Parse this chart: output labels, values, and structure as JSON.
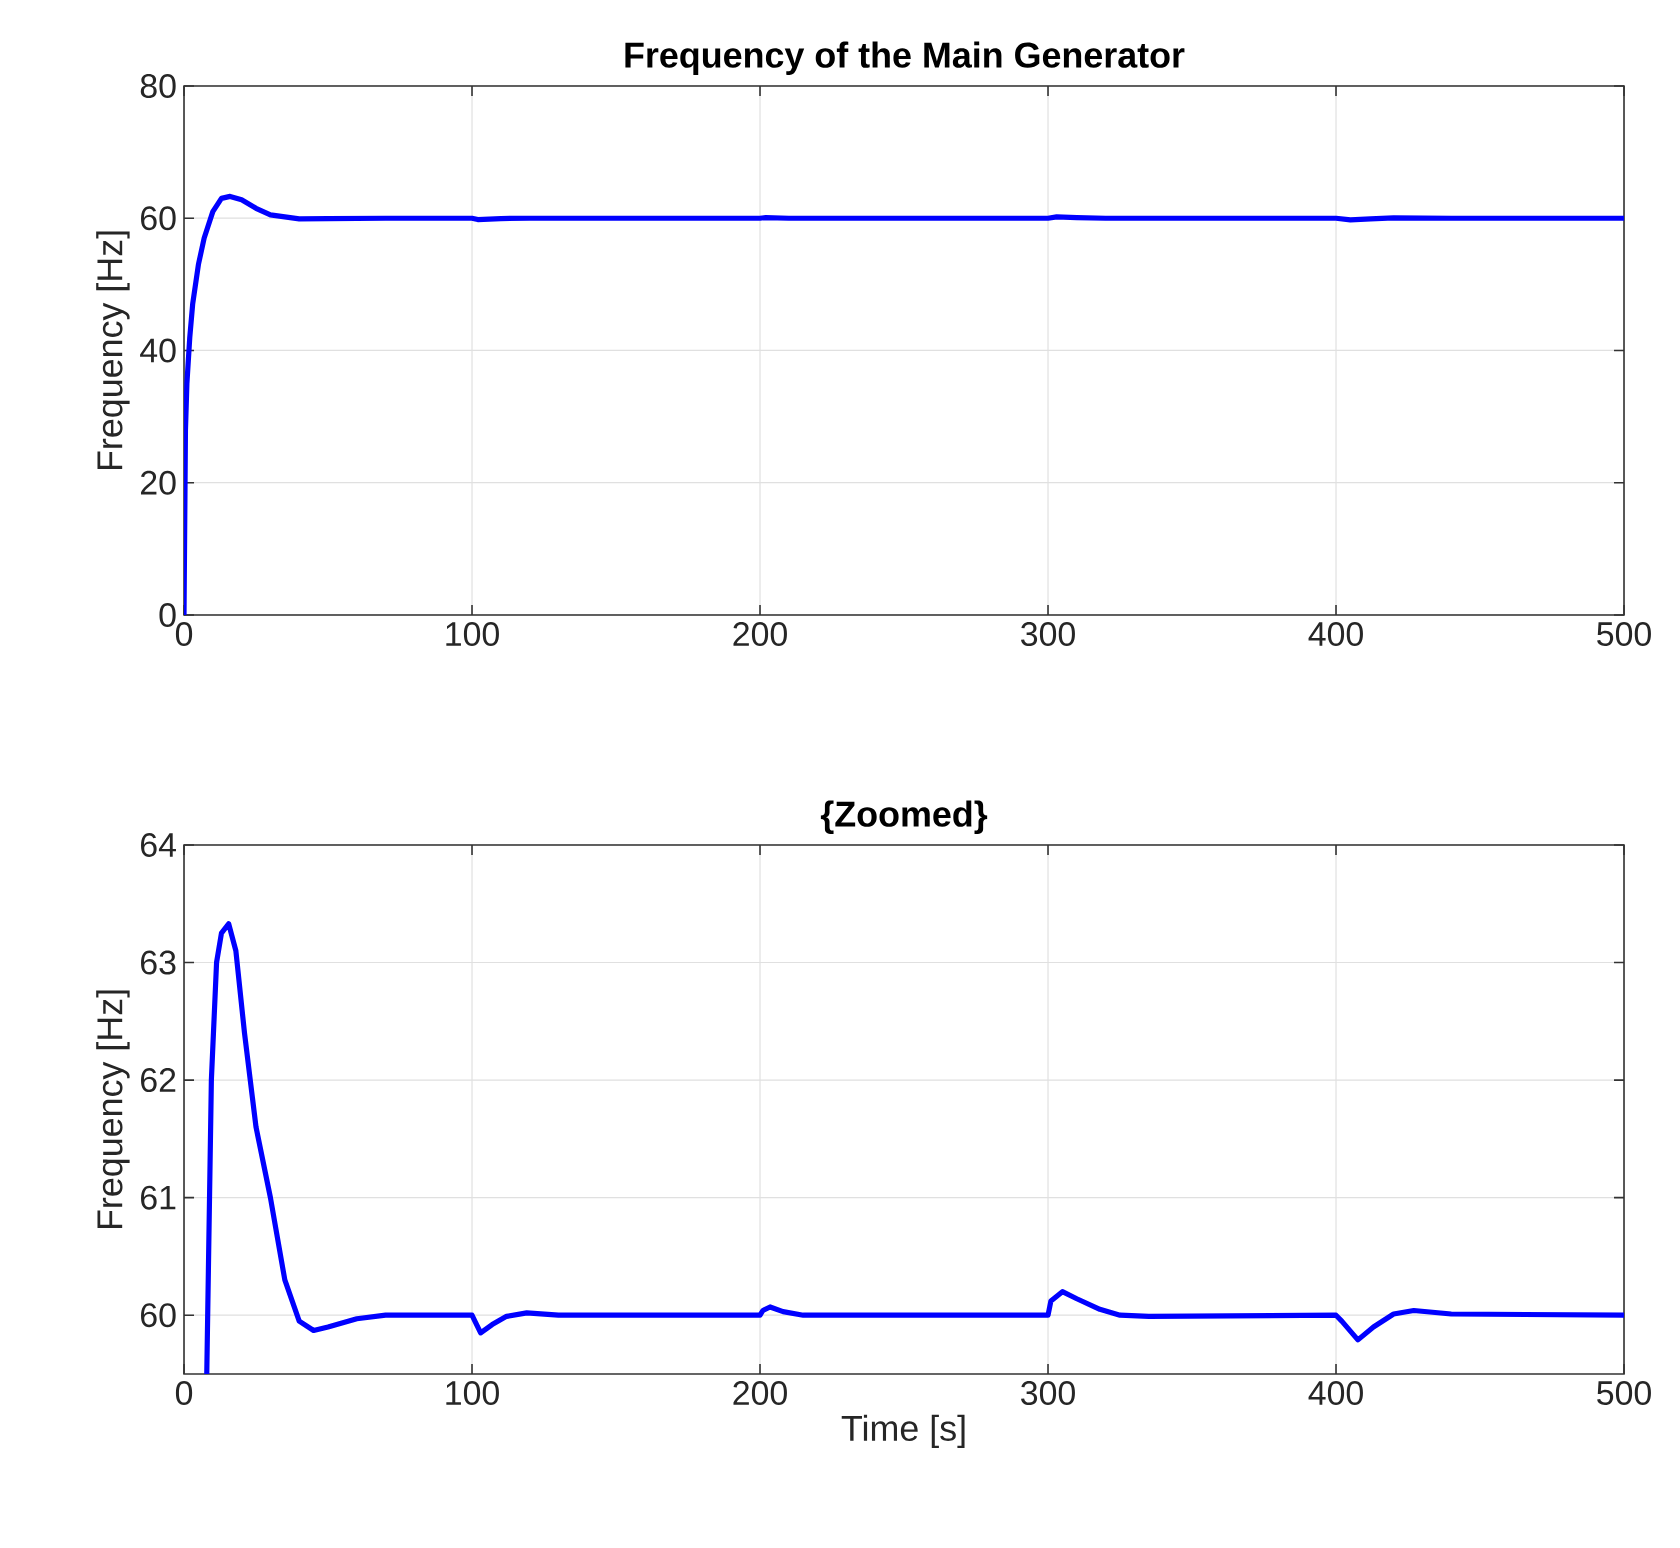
{
  "chart_data": [
    {
      "type": "line",
      "title": "Frequency of the Main Generator",
      "ylabel": "Frequency [Hz]",
      "x": [
        0,
        0.5,
        1,
        2,
        3,
        5,
        7,
        10,
        13,
        16,
        20,
        25,
        30,
        40,
        50,
        70,
        100,
        102,
        110,
        120,
        200,
        202,
        210,
        300,
        303,
        310,
        320,
        400,
        405,
        412,
        420,
        440,
        500
      ],
      "series": [
        {
          "color": "#0000ff",
          "values": [
            0,
            28,
            35,
            42,
            47,
            53,
            57,
            61,
            63,
            63.3,
            62.8,
            61.5,
            60.5,
            59.9,
            59.95,
            60,
            60,
            59.8,
            59.95,
            60,
            60,
            60.1,
            60,
            60,
            60.2,
            60.1,
            60,
            60,
            59.75,
            59.9,
            60.05,
            60,
            60
          ]
        }
      ],
      "xlim": [
        0,
        500
      ],
      "ylim": [
        0,
        80
      ],
      "xticks": [
        0,
        100,
        200,
        300,
        400,
        500
      ],
      "yticks": [
        0,
        20,
        40,
        60,
        80
      ],
      "grid": true
    },
    {
      "type": "line",
      "title": "{Zoomed}",
      "xlabel": "Time [s]",
      "ylabel": "Frequency [Hz]",
      "x": [
        7.9,
        9.5,
        11.3,
        13,
        15.5,
        18,
        21,
        25,
        30,
        35,
        40,
        45,
        50,
        60,
        70,
        100,
        101,
        103,
        107,
        112,
        119,
        130,
        200,
        201,
        203.5,
        208,
        215,
        220,
        300,
        301,
        305,
        310,
        318,
        325,
        335,
        400,
        402,
        407.6,
        413,
        420,
        427,
        440,
        500
      ],
      "series": [
        {
          "color": "#0000ff",
          "values": [
            59.5,
            62,
            63,
            63.25,
            63.33,
            63.1,
            62.4,
            61.6,
            61,
            60.3,
            59.95,
            59.87,
            59.9,
            59.97,
            60,
            60,
            59.95,
            59.85,
            59.92,
            59.99,
            60.02,
            60,
            60,
            60.04,
            60.07,
            60.03,
            60,
            60,
            60,
            60.12,
            60.2,
            60.14,
            60.05,
            60,
            59.99,
            60,
            59.95,
            59.79,
            59.9,
            60.01,
            60.04,
            60.01,
            60
          ]
        }
      ],
      "xlim": [
        0,
        500
      ],
      "ylim": [
        59.5,
        64
      ],
      "xticks": [
        0,
        100,
        200,
        300,
        400,
        500
      ],
      "yticks": [
        60,
        61,
        62,
        63,
        64
      ],
      "grid": true
    }
  ]
}
